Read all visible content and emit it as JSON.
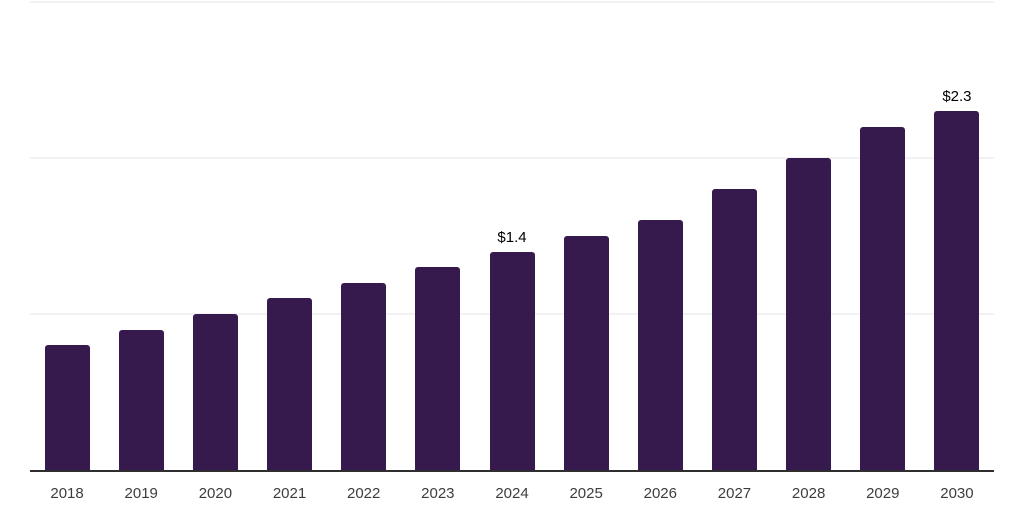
{
  "chart_data": {
    "type": "bar",
    "title": "",
    "xlabel": "",
    "ylabel": "",
    "categories": [
      "2018",
      "2019",
      "2020",
      "2021",
      "2022",
      "2023",
      "2024",
      "2025",
      "2026",
      "2027",
      "2028",
      "2029",
      "2030"
    ],
    "values": [
      0.8,
      0.9,
      1.0,
      1.1,
      1.2,
      1.3,
      1.4,
      1.5,
      1.6,
      1.8,
      2.0,
      2.2,
      2.3
    ],
    "value_prefix": "$",
    "data_labels": {
      "2024": "$1.4",
      "2030": "$2.3"
    },
    "ylim": [
      0,
      3
    ],
    "gridline_values": [
      1,
      2,
      3
    ],
    "grid": "on",
    "legend": "none",
    "colors": {
      "bar": "#371a4d",
      "axis_line": "#2e2e2e",
      "gridline": "#f2f2f4",
      "tick_label": "#3d3d3d",
      "data_label": "#000000",
      "background": "#ffffff"
    }
  }
}
